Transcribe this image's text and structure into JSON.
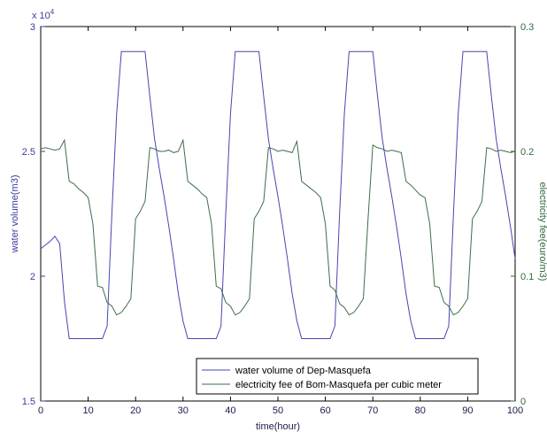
{
  "chart_data": {
    "type": "line",
    "xlabel": "time(hour)",
    "ylabel_left": "water volume(m3)",
    "ylabel_right": "electricity fee(euro/m3)",
    "xlim": [
      0,
      100
    ],
    "ylim_left": [
      15000,
      30000
    ],
    "ylim_right": [
      0,
      0.3
    ],
    "left_exponent_label": "x 10",
    "left_exponent_power": "4",
    "x_ticks": [
      "0",
      "10",
      "20",
      "30",
      "40",
      "50",
      "60",
      "70",
      "80",
      "90",
      "100"
    ],
    "y_left_ticks": [
      "1.5",
      "2",
      "2.5",
      "3"
    ],
    "y_right_ticks": [
      "0",
      "0.1",
      "0.2",
      "0.3"
    ],
    "grid": false,
    "legend_position": "bottom-center",
    "colors": {
      "left_axis": "#3b3b9e",
      "right_axis": "#2e6b3a",
      "series_volume": "#4646b4",
      "series_fee": "#3c6e48"
    },
    "series": [
      {
        "name": "water volume of Dep-Masquefa",
        "axis": "left",
        "points": [
          [
            0,
            21100
          ],
          [
            1,
            21250
          ],
          [
            2,
            21400
          ],
          [
            3,
            21600
          ],
          [
            4,
            21300
          ],
          [
            5,
            19000
          ],
          [
            6,
            17500
          ],
          [
            7,
            17500
          ],
          [
            8,
            17500
          ],
          [
            9,
            17500
          ],
          [
            10,
            17500
          ],
          [
            11,
            17500
          ],
          [
            12,
            17500
          ],
          [
            13,
            17500
          ],
          [
            14,
            18000
          ],
          [
            15,
            22500
          ],
          [
            16,
            26500
          ],
          [
            17,
            29000
          ],
          [
            18,
            29000
          ],
          [
            19,
            29000
          ],
          [
            20,
            29000
          ],
          [
            21,
            29000
          ],
          [
            22,
            29000
          ],
          [
            23,
            27200
          ],
          [
            24,
            25500
          ],
          [
            25,
            24300
          ],
          [
            26,
            23200
          ],
          [
            27,
            22000
          ],
          [
            28,
            20700
          ],
          [
            29,
            19300
          ],
          [
            30,
            18200
          ],
          [
            31,
            17500
          ],
          [
            32,
            17500
          ],
          [
            33,
            17500
          ],
          [
            34,
            17500
          ],
          [
            35,
            17500
          ],
          [
            36,
            17500
          ],
          [
            37,
            17500
          ],
          [
            38,
            18000
          ],
          [
            39,
            22500
          ],
          [
            40,
            26500
          ],
          [
            41,
            29000
          ],
          [
            42,
            29000
          ],
          [
            43,
            29000
          ],
          [
            44,
            29000
          ],
          [
            45,
            29000
          ],
          [
            46,
            29000
          ],
          [
            47,
            27200
          ],
          [
            48,
            25500
          ],
          [
            49,
            24300
          ],
          [
            50,
            23200
          ],
          [
            51,
            22000
          ],
          [
            52,
            20700
          ],
          [
            53,
            19300
          ],
          [
            54,
            18200
          ],
          [
            55,
            17500
          ],
          [
            56,
            17500
          ],
          [
            57,
            17500
          ],
          [
            58,
            17500
          ],
          [
            59,
            17500
          ],
          [
            60,
            17500
          ],
          [
            61,
            17500
          ],
          [
            62,
            18000
          ],
          [
            63,
            22500
          ],
          [
            64,
            26500
          ],
          [
            65,
            29000
          ],
          [
            66,
            29000
          ],
          [
            67,
            29000
          ],
          [
            68,
            29000
          ],
          [
            69,
            29000
          ],
          [
            70,
            29000
          ],
          [
            71,
            27200
          ],
          [
            72,
            25500
          ],
          [
            73,
            24300
          ],
          [
            74,
            23200
          ],
          [
            75,
            22000
          ],
          [
            76,
            20700
          ],
          [
            77,
            19300
          ],
          [
            78,
            18200
          ],
          [
            79,
            17500
          ],
          [
            80,
            17500
          ],
          [
            81,
            17500
          ],
          [
            82,
            17500
          ],
          [
            83,
            17500
          ],
          [
            84,
            17500
          ],
          [
            85,
            17500
          ],
          [
            86,
            18000
          ],
          [
            87,
            22500
          ],
          [
            88,
            26500
          ],
          [
            89,
            29000
          ],
          [
            90,
            29000
          ],
          [
            91,
            29000
          ],
          [
            92,
            29000
          ],
          [
            93,
            29000
          ],
          [
            94,
            29000
          ],
          [
            95,
            27200
          ],
          [
            96,
            25500
          ],
          [
            97,
            24300
          ],
          [
            98,
            23200
          ],
          [
            99,
            22000
          ],
          [
            100,
            20700
          ]
        ]
      },
      {
        "name": "electricity fee of Bom-Masquefa per cubic meter",
        "axis": "right",
        "points": [
          [
            0,
            0.202
          ],
          [
            1,
            0.203
          ],
          [
            2,
            0.202
          ],
          [
            3,
            0.201
          ],
          [
            4,
            0.202
          ],
          [
            5,
            0.209
          ],
          [
            6,
            0.176
          ],
          [
            7,
            0.174
          ],
          [
            8,
            0.17
          ],
          [
            9,
            0.167
          ],
          [
            10,
            0.163
          ],
          [
            11,
            0.142
          ],
          [
            12,
            0.092
          ],
          [
            13,
            0.091
          ],
          [
            14,
            0.079
          ],
          [
            15,
            0.076
          ],
          [
            16,
            0.069
          ],
          [
            17,
            0.071
          ],
          [
            18,
            0.076
          ],
          [
            19,
            0.082
          ],
          [
            20,
            0.146
          ],
          [
            21,
            0.152
          ],
          [
            22,
            0.16
          ],
          [
            23,
            0.203
          ],
          [
            24,
            0.202
          ],
          [
            25,
            0.2
          ],
          [
            26,
            0.2
          ],
          [
            27,
            0.201
          ],
          [
            28,
            0.199
          ],
          [
            29,
            0.2
          ],
          [
            30,
            0.209
          ],
          [
            31,
            0.176
          ],
          [
            32,
            0.173
          ],
          [
            33,
            0.17
          ],
          [
            34,
            0.166
          ],
          [
            35,
            0.163
          ],
          [
            36,
            0.142
          ],
          [
            37,
            0.092
          ],
          [
            38,
            0.09
          ],
          [
            39,
            0.079
          ],
          [
            40,
            0.076
          ],
          [
            41,
            0.069
          ],
          [
            42,
            0.071
          ],
          [
            43,
            0.076
          ],
          [
            44,
            0.082
          ],
          [
            45,
            0.146
          ],
          [
            46,
            0.152
          ],
          [
            47,
            0.16
          ],
          [
            48,
            0.203
          ],
          [
            49,
            0.202
          ],
          [
            50,
            0.2
          ],
          [
            51,
            0.201
          ],
          [
            52,
            0.2
          ],
          [
            53,
            0.199
          ],
          [
            54,
            0.208
          ],
          [
            55,
            0.176
          ],
          [
            56,
            0.173
          ],
          [
            57,
            0.17
          ],
          [
            58,
            0.167
          ],
          [
            59,
            0.163
          ],
          [
            60,
            0.142
          ],
          [
            61,
            0.092
          ],
          [
            62,
            0.089
          ],
          [
            63,
            0.078
          ],
          [
            64,
            0.075
          ],
          [
            65,
            0.069
          ],
          [
            66,
            0.071
          ],
          [
            67,
            0.076
          ],
          [
            68,
            0.082
          ],
          [
            69,
            0.146
          ],
          [
            70,
            0.205
          ],
          [
            71,
            0.203
          ],
          [
            72,
            0.202
          ],
          [
            73,
            0.2
          ],
          [
            74,
            0.201
          ],
          [
            75,
            0.2
          ],
          [
            76,
            0.199
          ],
          [
            77,
            0.176
          ],
          [
            78,
            0.173
          ],
          [
            79,
            0.169
          ],
          [
            80,
            0.165
          ],
          [
            81,
            0.163
          ],
          [
            82,
            0.142
          ],
          [
            83,
            0.092
          ],
          [
            84,
            0.091
          ],
          [
            85,
            0.079
          ],
          [
            86,
            0.076
          ],
          [
            87,
            0.069
          ],
          [
            88,
            0.071
          ],
          [
            89,
            0.076
          ],
          [
            90,
            0.082
          ],
          [
            91,
            0.146
          ],
          [
            92,
            0.152
          ],
          [
            93,
            0.16
          ],
          [
            94,
            0.203
          ],
          [
            95,
            0.202
          ],
          [
            96,
            0.2
          ],
          [
            97,
            0.201
          ],
          [
            98,
            0.2
          ],
          [
            99,
            0.199
          ],
          [
            100,
            0.2
          ]
        ]
      }
    ]
  }
}
